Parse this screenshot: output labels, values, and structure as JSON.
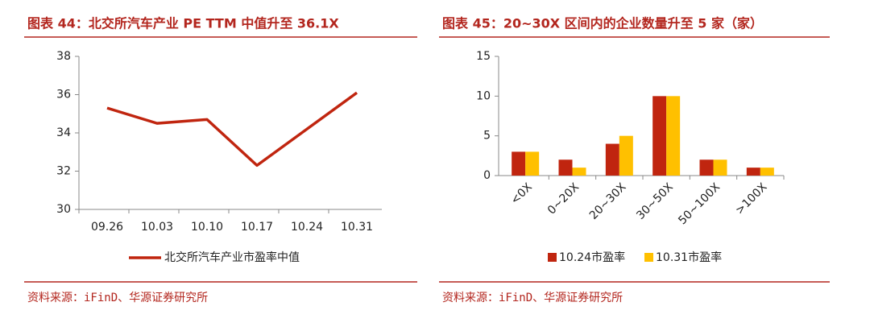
{
  "chart_data": [
    {
      "type": "line",
      "title": "图表 44：北交所汽车产业 PE TTM 中值升至 36.1X",
      "categories": [
        "09.26",
        "10.03",
        "10.10",
        "10.17",
        "10.24",
        "10.31"
      ],
      "series": [
        {
          "name": "北交所汽车产业市盈率中值",
          "color": "#c0250f",
          "values": [
            35.3,
            34.5,
            34.7,
            32.3,
            34.2,
            36.1
          ]
        }
      ],
      "ylim": [
        30,
        38
      ],
      "yticks": [
        30,
        32,
        34,
        36,
        38
      ],
      "grid": false,
      "legend": "bottom",
      "source": "资料来源：iFinD、华源证券研究所"
    },
    {
      "type": "bar",
      "title": "图表 45：20~30X 区间内的企业数量升至 5 家（家）",
      "categories": [
        "<0X",
        "0~20X",
        "20~30X",
        "30~50X",
        "50~100X",
        ">100X"
      ],
      "series": [
        {
          "name": "10.24市盈率",
          "color": "#c0250f",
          "values": [
            3,
            2,
            4,
            10,
            2,
            1
          ]
        },
        {
          "name": "10.31市盈率",
          "color": "#ffc000",
          "values": [
            3,
            1,
            5,
            10,
            2,
            1
          ]
        }
      ],
      "ylim": [
        0,
        15
      ],
      "yticks": [
        0,
        5,
        10,
        15
      ],
      "grid": false,
      "legend": "bottom",
      "source": "资料来源：iFinD、华源证券研究所"
    }
  ]
}
